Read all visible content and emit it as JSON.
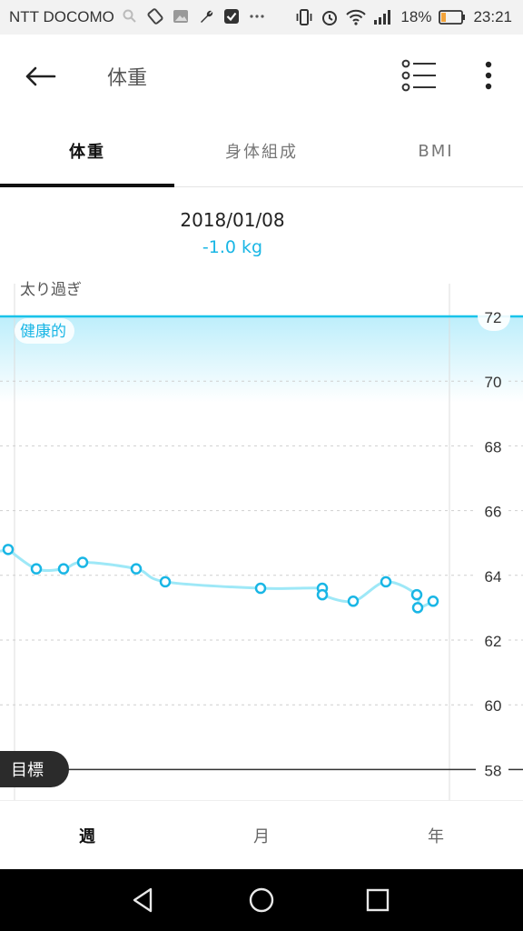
{
  "status_bar": {
    "carrier": "NTT DOCOMO",
    "battery": "18%",
    "time": "23:21"
  },
  "toolbar": {
    "title": "体重"
  },
  "tabs": [
    {
      "label": "体重",
      "active": true
    },
    {
      "label": "身体組成",
      "active": false
    },
    {
      "label": "BMI",
      "active": false
    }
  ],
  "selected": {
    "date": "2018/01/08",
    "diff": "-1.0 kg"
  },
  "chart_data": {
    "type": "line",
    "ylim": [
      57,
      73
    ],
    "y_ticks": [
      72,
      70,
      68,
      66,
      64,
      62,
      60,
      58
    ],
    "zones": {
      "overweight_label": "太り過ぎ",
      "healthy_label": "健康的",
      "healthy_upper": 72
    },
    "goal": {
      "label": "目標",
      "value": 58
    },
    "series": [
      {
        "values": [
          64.8,
          64.2,
          64.2,
          64.4,
          64.2,
          63.8,
          63.6,
          63.6,
          63.4,
          63.2,
          63.8,
          63.4,
          63.0,
          63.2
        ]
      }
    ],
    "colors": {
      "line": "#9ee8f7",
      "point": "#19b6e5",
      "zone": "#c9f0fb",
      "zone_line": "#19c3ea"
    }
  },
  "period": [
    {
      "label": "週",
      "active": true
    },
    {
      "label": "月",
      "active": false
    },
    {
      "label": "年",
      "active": false
    }
  ]
}
